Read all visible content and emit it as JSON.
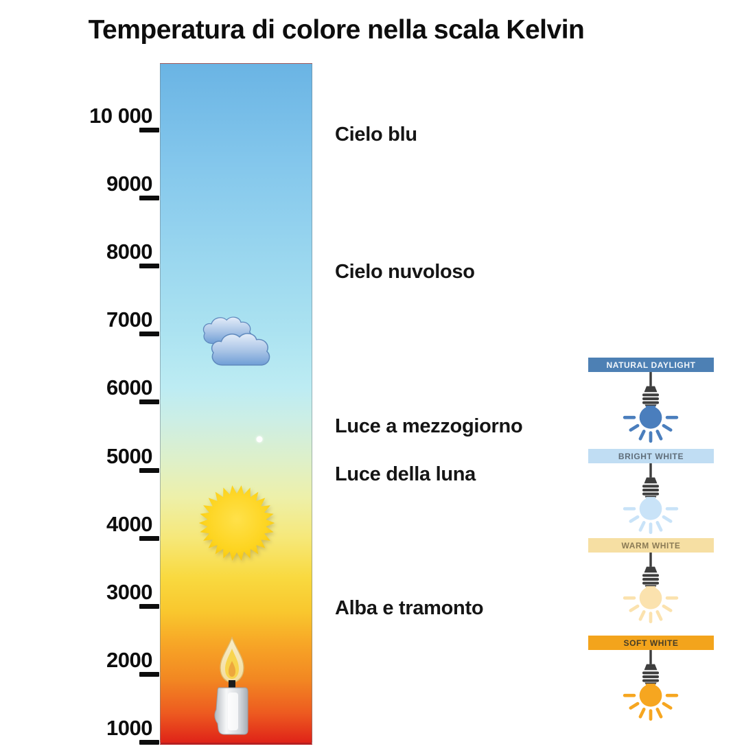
{
  "title": "Temperatura di colore nella scala Kelvin",
  "scale": {
    "unit": "K",
    "kelvin_min": 1000,
    "kelvin_max": 10000,
    "ticks": [
      {
        "label": "10 000",
        "kelvin": 10000
      },
      {
        "label": "9000",
        "kelvin": 9000
      },
      {
        "label": "8000",
        "kelvin": 8000
      },
      {
        "label": "7000",
        "kelvin": 7000
      },
      {
        "label": "6000",
        "kelvin": 6000
      },
      {
        "label": "5000",
        "kelvin": 5000
      },
      {
        "label": "4000",
        "kelvin": 4000
      },
      {
        "label": "3000",
        "kelvin": 3000
      },
      {
        "label": "2000",
        "kelvin": 2000
      },
      {
        "label": "1000",
        "kelvin": 1000
      }
    ],
    "gradient": [
      {
        "kelvin": 10989,
        "color": "#6ab4e4"
      },
      {
        "kelvin": 9500,
        "color": "#84c7ec"
      },
      {
        "kelvin": 8000,
        "color": "#9cd8ef"
      },
      {
        "kelvin": 7000,
        "color": "#ace3f1"
      },
      {
        "kelvin": 6200,
        "color": "#bdecf3"
      },
      {
        "kelvin": 5700,
        "color": "#cdeee4"
      },
      {
        "kelvin": 5100,
        "color": "#dff0c7"
      },
      {
        "kelvin": 4600,
        "color": "#edf0aa"
      },
      {
        "kelvin": 4000,
        "color": "#f6e87a"
      },
      {
        "kelvin": 3400,
        "color": "#f9d93f"
      },
      {
        "kelvin": 2900,
        "color": "#f9c72e"
      },
      {
        "kelvin": 2400,
        "color": "#f7a426"
      },
      {
        "kelvin": 1900,
        "color": "#f28722"
      },
      {
        "kelvin": 1400,
        "color": "#ed5a20"
      },
      {
        "kelvin": 969,
        "color": "#df2318"
      }
    ]
  },
  "annotations": [
    {
      "label": "Cielo blu",
      "kelvin": 9930
    },
    {
      "label": "Cielo nuvoloso",
      "kelvin": 7910
    },
    {
      "label": "Luce a mezzogiorno",
      "kelvin": 5640
    },
    {
      "label": "Luce della luna",
      "kelvin": 4930
    },
    {
      "label": "Alba e tramonto",
      "kelvin": 2970
    }
  ],
  "icons": [
    {
      "name": "cloud",
      "kelvin": 6900
    },
    {
      "name": "moon",
      "kelvin": 5460
    },
    {
      "name": "sun",
      "kelvin": 4230
    },
    {
      "name": "candle",
      "kelvin": 1830
    }
  ],
  "swatches": [
    {
      "label": "NATURAL DAYLIGHT",
      "header_bg": "#4d80b4",
      "header_text": "#f2f6fa",
      "bulb_color": "#4a7ebd"
    },
    {
      "label": "BRIGHT WHITE",
      "header_bg": "#c0ddf3",
      "header_text": "#5f6d79",
      "bulb_color": "#c9e3f8"
    },
    {
      "label": "WARM WHITE",
      "header_bg": "#f6dfa3",
      "header_text": "#8a7a55",
      "bulb_color": "#fbe2ae"
    },
    {
      "label": "SOFT WHITE",
      "header_bg": "#f3a41c",
      "header_text": "#443c27",
      "bulb_color": "#f6a620"
    }
  ]
}
